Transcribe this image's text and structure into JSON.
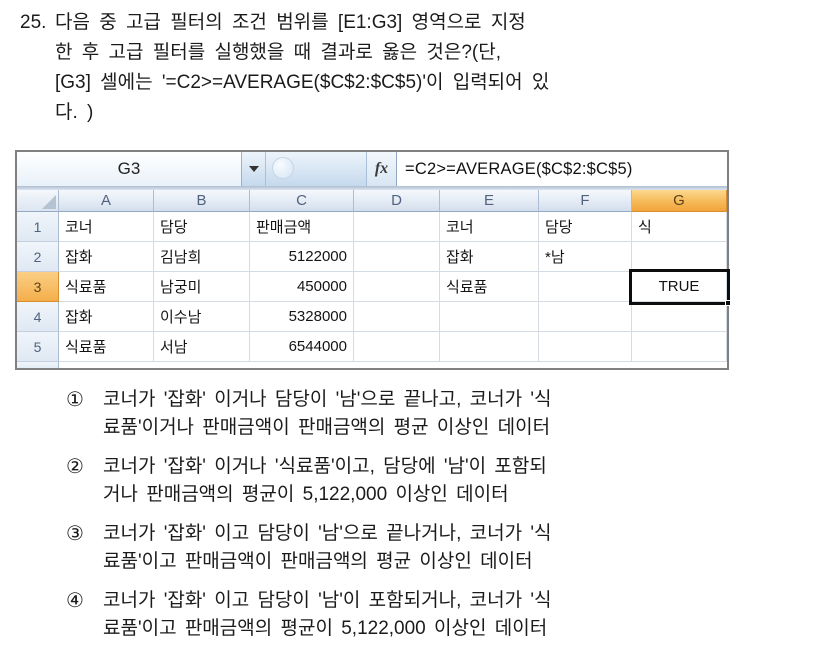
{
  "question": {
    "number": "25.",
    "lines": [
      "다음 중 고급 필터의 조건 범위를 [E1:G3] 영역으로 지정",
      "한 후 고급 필터를 실행했을 때 결과로 옳은 것은?(단,",
      "[G3] 셀에는 '=C2>=AVERAGE($C$2:$C$5)'이 입력되어 있",
      "다. )"
    ]
  },
  "sheet": {
    "name_box": "G3",
    "fx_label": "fx",
    "formula": "=C2>=AVERAGE($C$2:$C$5)",
    "selected_cell": "G3",
    "selected_cell_value": "TRUE",
    "col_headers": [
      "A",
      "B",
      "C",
      "D",
      "E",
      "F",
      "G"
    ],
    "row_headers": [
      "1",
      "2",
      "3",
      "4",
      "5"
    ],
    "cells": [
      [
        "코너",
        "담당",
        "판매금액",
        "",
        "코너",
        "담당",
        "식"
      ],
      [
        "잡화",
        "김남희",
        "5122000",
        "",
        "잡화",
        "*남",
        ""
      ],
      [
        "식료품",
        "남궁미",
        "450000",
        "",
        "식료품",
        "",
        "TRUE"
      ],
      [
        "잡화",
        "이수남",
        "5328000",
        "",
        "",
        "",
        ""
      ],
      [
        "식료품",
        "서남",
        "6544000",
        "",
        "",
        "",
        ""
      ]
    ],
    "colors": {
      "header_selected": "#F6BA59",
      "header_normal": "#E2EAF4",
      "gridline": "#D5DBE3",
      "selection_border": "#0D0D0D",
      "formula_bar_bg": "#D8E6F2"
    }
  },
  "options": [
    {
      "marker": "①",
      "line1": "코너가 '잡화' 이거나 담당이 '남'으로 끝나고, 코너가 '식",
      "line2": "료품'이거나 판매금액이 판매금액의 평균 이상인 데이터"
    },
    {
      "marker": "②",
      "line1": "코너가 '잡화' 이거나 '식료품'이고, 담당에 '남'이 포함되",
      "line2": "거나 판매금액의 평균이 5,122,000 이상인 데이터"
    },
    {
      "marker": "③",
      "line1": "코너가 '잡화' 이고 담당이 '남'으로 끝나거나, 코너가 '식",
      "line2": "료품'이고 판매금액이 판매금액의 평균 이상인 데이터"
    },
    {
      "marker": "④",
      "line1": "코너가 '잡화' 이고 담당이 '남'이 포함되거나, 코너가 '식",
      "line2": "료품'이고 판매금액의 평균이 5,122,000 이상인 데이터"
    }
  ]
}
